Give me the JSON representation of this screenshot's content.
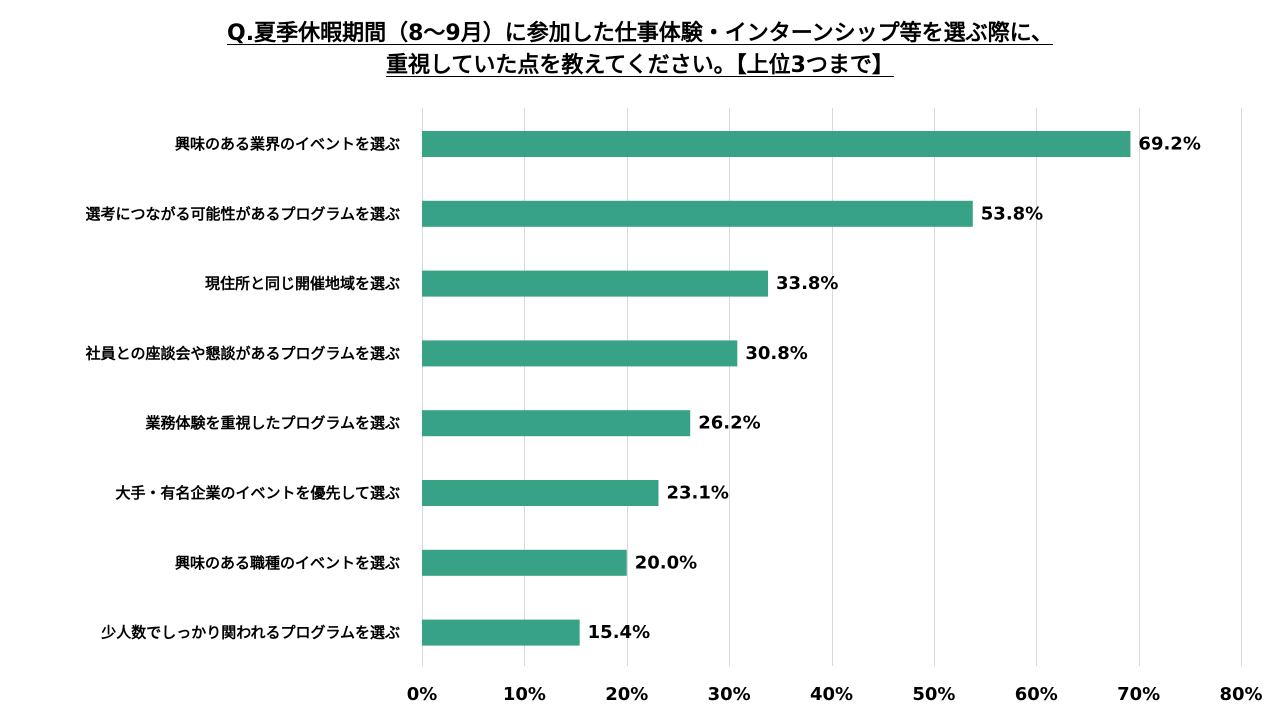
{
  "chart_data": {
    "type": "bar",
    "orientation": "horizontal",
    "title_lines": [
      "Q.夏季休暇期間（8～9月）に参加した仕事体験・インターンシップ等を選ぶ際に、",
      "重視していた点を教えてください。【上位3つまで】"
    ],
    "categories": [
      "興味のある業界のイベントを選ぶ",
      "選考につながる可能性があるプログラムを選ぶ",
      "現住所と同じ開催地域を選ぶ",
      "社員との座談会や懇談があるプログラムを選ぶ",
      "業務体験を重視したプログラムを選ぶ",
      "大手・有名企業のイベントを優先して選ぶ",
      "興味のある職種のイベントを選ぶ",
      "少人数でしっかり関われるプログラムを選ぶ"
    ],
    "values": [
      69.2,
      53.8,
      33.8,
      30.8,
      26.2,
      23.1,
      20.0,
      15.4
    ],
    "value_labels": [
      "69.2%",
      "53.8%",
      "33.8%",
      "30.8%",
      "26.2%",
      "23.1%",
      "20.0%",
      "15.4%"
    ],
    "xlim": [
      0,
      80
    ],
    "x_ticks": [
      0,
      10,
      20,
      30,
      40,
      50,
      60,
      70,
      80
    ],
    "x_tick_labels": [
      "0%",
      "10%",
      "20%",
      "30%",
      "40%",
      "50%",
      "60%",
      "70%",
      "80%"
    ],
    "grid": "vertical",
    "bar_color": "#37a285",
    "grid_color": "#d9d9d9"
  }
}
